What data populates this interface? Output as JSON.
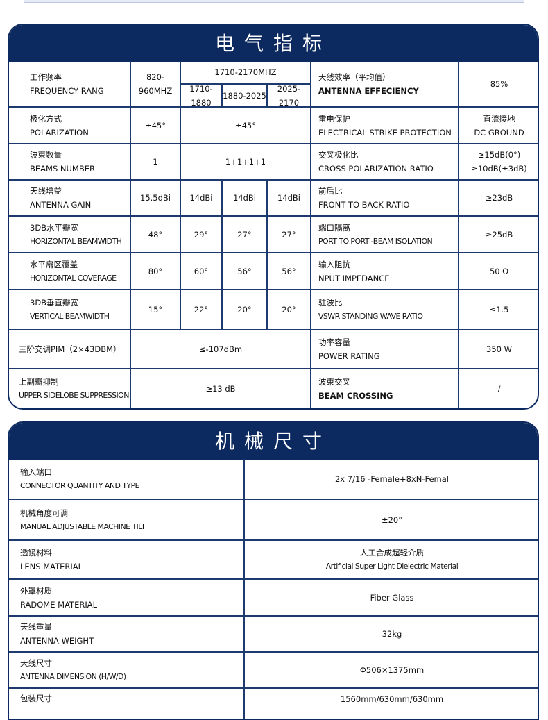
{
  "section1": {
    "title": "电气指标",
    "freq": {
      "zh": "工作频率",
      "en": "FREQUENCY RANG",
      "low": "820-960MHZ",
      "high": "1710-2170MHZ",
      "bands": [
        "1710-1880",
        "1880-2025",
        "2025-2170"
      ]
    },
    "pol": {
      "zh": "极化方式",
      "en": "POLARIZATION",
      "low": "±45°",
      "high": "±45°"
    },
    "beams": {
      "zh": "波束数量",
      "en": "BEAMS NUMBER",
      "low": "1",
      "high": "1+1+1+1"
    },
    "gain": {
      "zh": "天线增益",
      "en": "ANTENNA GAIN",
      "vals": [
        "15.5dBi",
        "14dBi",
        "14dBi",
        "14dBi"
      ]
    },
    "hbw": {
      "zh": "3DB水平瓣宽",
      "en": "HORIZONTAL BEAMWIDTH",
      "vals": [
        "48°",
        "29°",
        "27°",
        "27°"
      ]
    },
    "hcov": {
      "zh": "水平扇区覆盖",
      "en": "HORIZONTAL COVERAGE",
      "vals": [
        "80°",
        "60°",
        "56°",
        "56°"
      ]
    },
    "vbw": {
      "zh": "3DB垂直瓣宽",
      "en": "VERTICAL BEAMWIDTH",
      "vals": [
        "15°",
        "22°",
        "20°",
        "20°"
      ]
    },
    "pim": {
      "label": "三阶交调PIM（2×43DBM）",
      "val": "≤-107dBm"
    },
    "usl": {
      "zh": "上副瓣抑制",
      "en": "UPPER SIDELOBE SUPPRESSION",
      "val": "≥13 dB"
    },
    "right": [
      {
        "zh": "天线效率（平均值）",
        "en": "ANTENNA EFFECIENCY",
        "val": "85%"
      },
      {
        "zh": "雷电保护",
        "en": "ELECTRICAL STRIKE PROTECTION",
        "val": "直流接地",
        "val2": "DC GROUND"
      },
      {
        "zh": "交叉极化比",
        "en": "CROSS POLARIZATION RATIO",
        "val": "≥15dB(0°)",
        "val2": "≥10dB(±3dB)"
      },
      {
        "zh": "前后比",
        "en": "FRONT TO BACK RATIO",
        "val": "≥23dB"
      },
      {
        "zh": "端口隔离",
        "en": "PORT TO PORT -BEAM ISOLATION",
        "val": "≥25dB"
      },
      {
        "zh": "输入阻抗",
        "en": "NPUT IMPEDANCE",
        "val": "50 Ω"
      },
      {
        "zh": "驻波比",
        "en": "VSWR STANDING WAVE RATIO",
        "val": "≤1.5"
      },
      {
        "zh": "功率容量",
        "en": "POWER RATING",
        "val": "350 W"
      },
      {
        "zh": "波束交叉",
        "en": "BEAM CROSSING",
        "val": "/"
      }
    ]
  },
  "section2": {
    "title": "机械尺寸",
    "rows": [
      {
        "zh": "输入端口",
        "en": "CONNECTOR QUANTITY AND TYPE",
        "val": "2x 7/16 -Female+8xN-Femal"
      },
      {
        "zh": "机械角度可调",
        "en": "MANUAL ADJUSTABLE MACHINE TILT",
        "val": "±20°"
      },
      {
        "zh": "透镜材料",
        "en": "LENS MATERIAL",
        "val": "人工合成超轻介质",
        "val2": "Artificial Super Light Dielectric Material"
      },
      {
        "zh": "外罩材质",
        "en": "RADOME MATERIAL",
        "val": "Fiber Glass"
      },
      {
        "zh": "天线重量",
        "en": "ANTENNA WEIGHT",
        "val": "32kg"
      },
      {
        "zh": "天线尺寸",
        "en": "ANTENNA DIMENSION (H/W/D)",
        "val": "Φ506×1375mm"
      },
      {
        "zh": "包装尺寸",
        "en": "",
        "val": "1560mm/630mm/630mm"
      }
    ]
  }
}
